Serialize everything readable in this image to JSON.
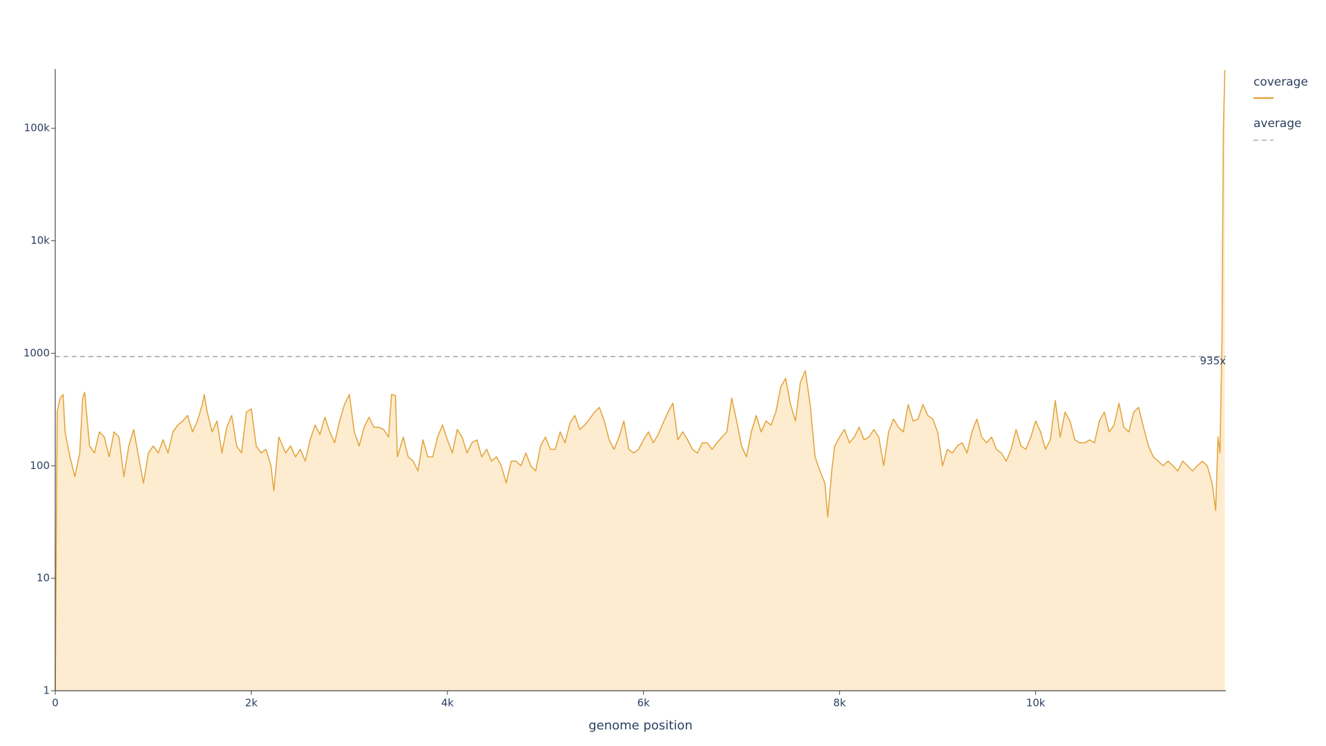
{
  "chart_data": {
    "type": "area",
    "x_label": "genome position",
    "log_y": true,
    "xlim": [
      0,
      11940
    ],
    "ylim": [
      1,
      336000
    ],
    "xticks": [
      0,
      {
        "value": 2000,
        "label": "2k"
      },
      {
        "value": 4000,
        "label": "4k"
      },
      {
        "value": 6000,
        "label": "6k"
      },
      {
        "value": 8000,
        "label": "8k"
      },
      {
        "value": 10000,
        "label": "10k"
      }
    ],
    "yticks": [
      1,
      10,
      100,
      1000,
      {
        "value": 10000,
        "label": "10k"
      },
      {
        "value": 100000,
        "label": "100k"
      }
    ],
    "x": [
      0,
      20,
      50,
      80,
      100,
      150,
      200,
      250,
      280,
      300,
      350,
      400,
      450,
      500,
      550,
      600,
      650,
      700,
      750,
      800,
      850,
      900,
      950,
      1000,
      1050,
      1100,
      1150,
      1200,
      1250,
      1300,
      1350,
      1400,
      1450,
      1500,
      1520,
      1550,
      1600,
      1650,
      1700,
      1750,
      1800,
      1850,
      1900,
      1950,
      2000,
      2050,
      2100,
      2150,
      2200,
      2230,
      2280,
      2350,
      2400,
      2450,
      2500,
      2550,
      2600,
      2650,
      2700,
      2750,
      2800,
      2850,
      2900,
      2950,
      3000,
      3050,
      3100,
      3150,
      3200,
      3250,
      3300,
      3350,
      3400,
      3430,
      3470,
      3490,
      3550,
      3600,
      3650,
      3700,
      3750,
      3800,
      3850,
      3900,
      3950,
      4000,
      4050,
      4100,
      4150,
      4200,
      4250,
      4300,
      4350,
      4400,
      4450,
      4500,
      4550,
      4600,
      4650,
      4700,
      4750,
      4800,
      4850,
      4900,
      4950,
      5000,
      5050,
      5100,
      5150,
      5200,
      5250,
      5300,
      5350,
      5400,
      5450,
      5500,
      5550,
      5600,
      5650,
      5700,
      5750,
      5800,
      5850,
      5900,
      5950,
      6000,
      6050,
      6100,
      6150,
      6200,
      6250,
      6300,
      6350,
      6400,
      6450,
      6500,
      6550,
      6600,
      6650,
      6700,
      6750,
      6800,
      6850,
      6900,
      6950,
      7000,
      7050,
      7100,
      7150,
      7200,
      7250,
      7300,
      7350,
      7400,
      7450,
      7500,
      7550,
      7600,
      7650,
      7700,
      7750,
      7800,
      7850,
      7880,
      7920,
      7950,
      8000,
      8050,
      8100,
      8150,
      8200,
      8250,
      8300,
      8350,
      8400,
      8450,
      8500,
      8550,
      8600,
      8650,
      8700,
      8750,
      8800,
      8850,
      8900,
      8950,
      9000,
      9050,
      9100,
      9150,
      9200,
      9250,
      9300,
      9350,
      9400,
      9450,
      9500,
      9550,
      9600,
      9650,
      9700,
      9750,
      9800,
      9850,
      9900,
      9950,
      10000,
      10050,
      10100,
      10150,
      10200,
      10250,
      10300,
      10350,
      10400,
      10450,
      10500,
      10550,
      10600,
      10650,
      10700,
      10750,
      10800,
      10850,
      10900,
      10950,
      11000,
      11050,
      11100,
      11150,
      11200,
      11250,
      11300,
      11350,
      11400,
      11450,
      11500,
      11550,
      11600,
      11650,
      11700,
      11750,
      11800,
      11836,
      11860,
      11880,
      11900,
      11915,
      11930
    ],
    "series": [
      {
        "name": "coverage",
        "color": "#e3a53f",
        "fill": "#fdeccf",
        "values": [
          1,
          300,
          400,
          430,
          200,
          120,
          80,
          130,
          400,
          450,
          150,
          130,
          200,
          180,
          120,
          200,
          180,
          80,
          150,
          210,
          120,
          70,
          130,
          150,
          130,
          170,
          130,
          200,
          230,
          250,
          280,
          200,
          250,
          350,
          430,
          300,
          200,
          250,
          130,
          220,
          280,
          150,
          130,
          300,
          320,
          150,
          130,
          140,
          100,
          60,
          180,
          130,
          150,
          120,
          140,
          110,
          170,
          230,
          190,
          270,
          200,
          160,
          250,
          350,
          430,
          200,
          150,
          220,
          270,
          220,
          220,
          210,
          180,
          430,
          420,
          120,
          180,
          120,
          110,
          90,
          170,
          120,
          120,
          180,
          230,
          170,
          130,
          210,
          180,
          130,
          160,
          170,
          120,
          140,
          110,
          120,
          100,
          70,
          110,
          110,
          100,
          130,
          100,
          90,
          150,
          180,
          140,
          140,
          200,
          160,
          240,
          280,
          210,
          230,
          260,
          300,
          330,
          250,
          170,
          140,
          180,
          250,
          140,
          130,
          140,
          170,
          200,
          160,
          190,
          240,
          300,
          360,
          170,
          200,
          170,
          140,
          130,
          160,
          160,
          140,
          160,
          180,
          200,
          400,
          250,
          150,
          120,
          200,
          280,
          200,
          250,
          230,
          300,
          500,
          600,
          350,
          250,
          550,
          700,
          350,
          120,
          90,
          70,
          35,
          90,
          150,
          180,
          210,
          160,
          180,
          220,
          170,
          180,
          210,
          180,
          100,
          200,
          260,
          220,
          200,
          350,
          250,
          260,
          350,
          280,
          260,
          200,
          100,
          140,
          130,
          150,
          160,
          130,
          200,
          260,
          180,
          160,
          180,
          140,
          130,
          110,
          140,
          210,
          150,
          140,
          180,
          250,
          200,
          140,
          170,
          380,
          180,
          300,
          250,
          170,
          160,
          160,
          170,
          160,
          250,
          300,
          200,
          230,
          360,
          220,
          200,
          300,
          330,
          220,
          150,
          120,
          110,
          100,
          110,
          100,
          90,
          110,
          100,
          90,
          100,
          110,
          100,
          70,
          40,
          180,
          130,
          1200,
          100000,
          330000
        ]
      }
    ],
    "average": {
      "name": "average",
      "color": "#999999",
      "value": 935,
      "label": "935x"
    }
  }
}
